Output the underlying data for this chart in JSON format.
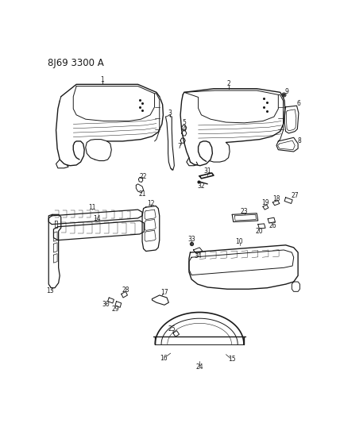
{
  "title": "8J69 3300 A",
  "background_color": "#ffffff",
  "line_color": "#1a1a1a",
  "label_fontsize": 5.5,
  "title_fontsize": 8.5,
  "figsize": [
    4.28,
    5.33
  ],
  "dpi": 100
}
